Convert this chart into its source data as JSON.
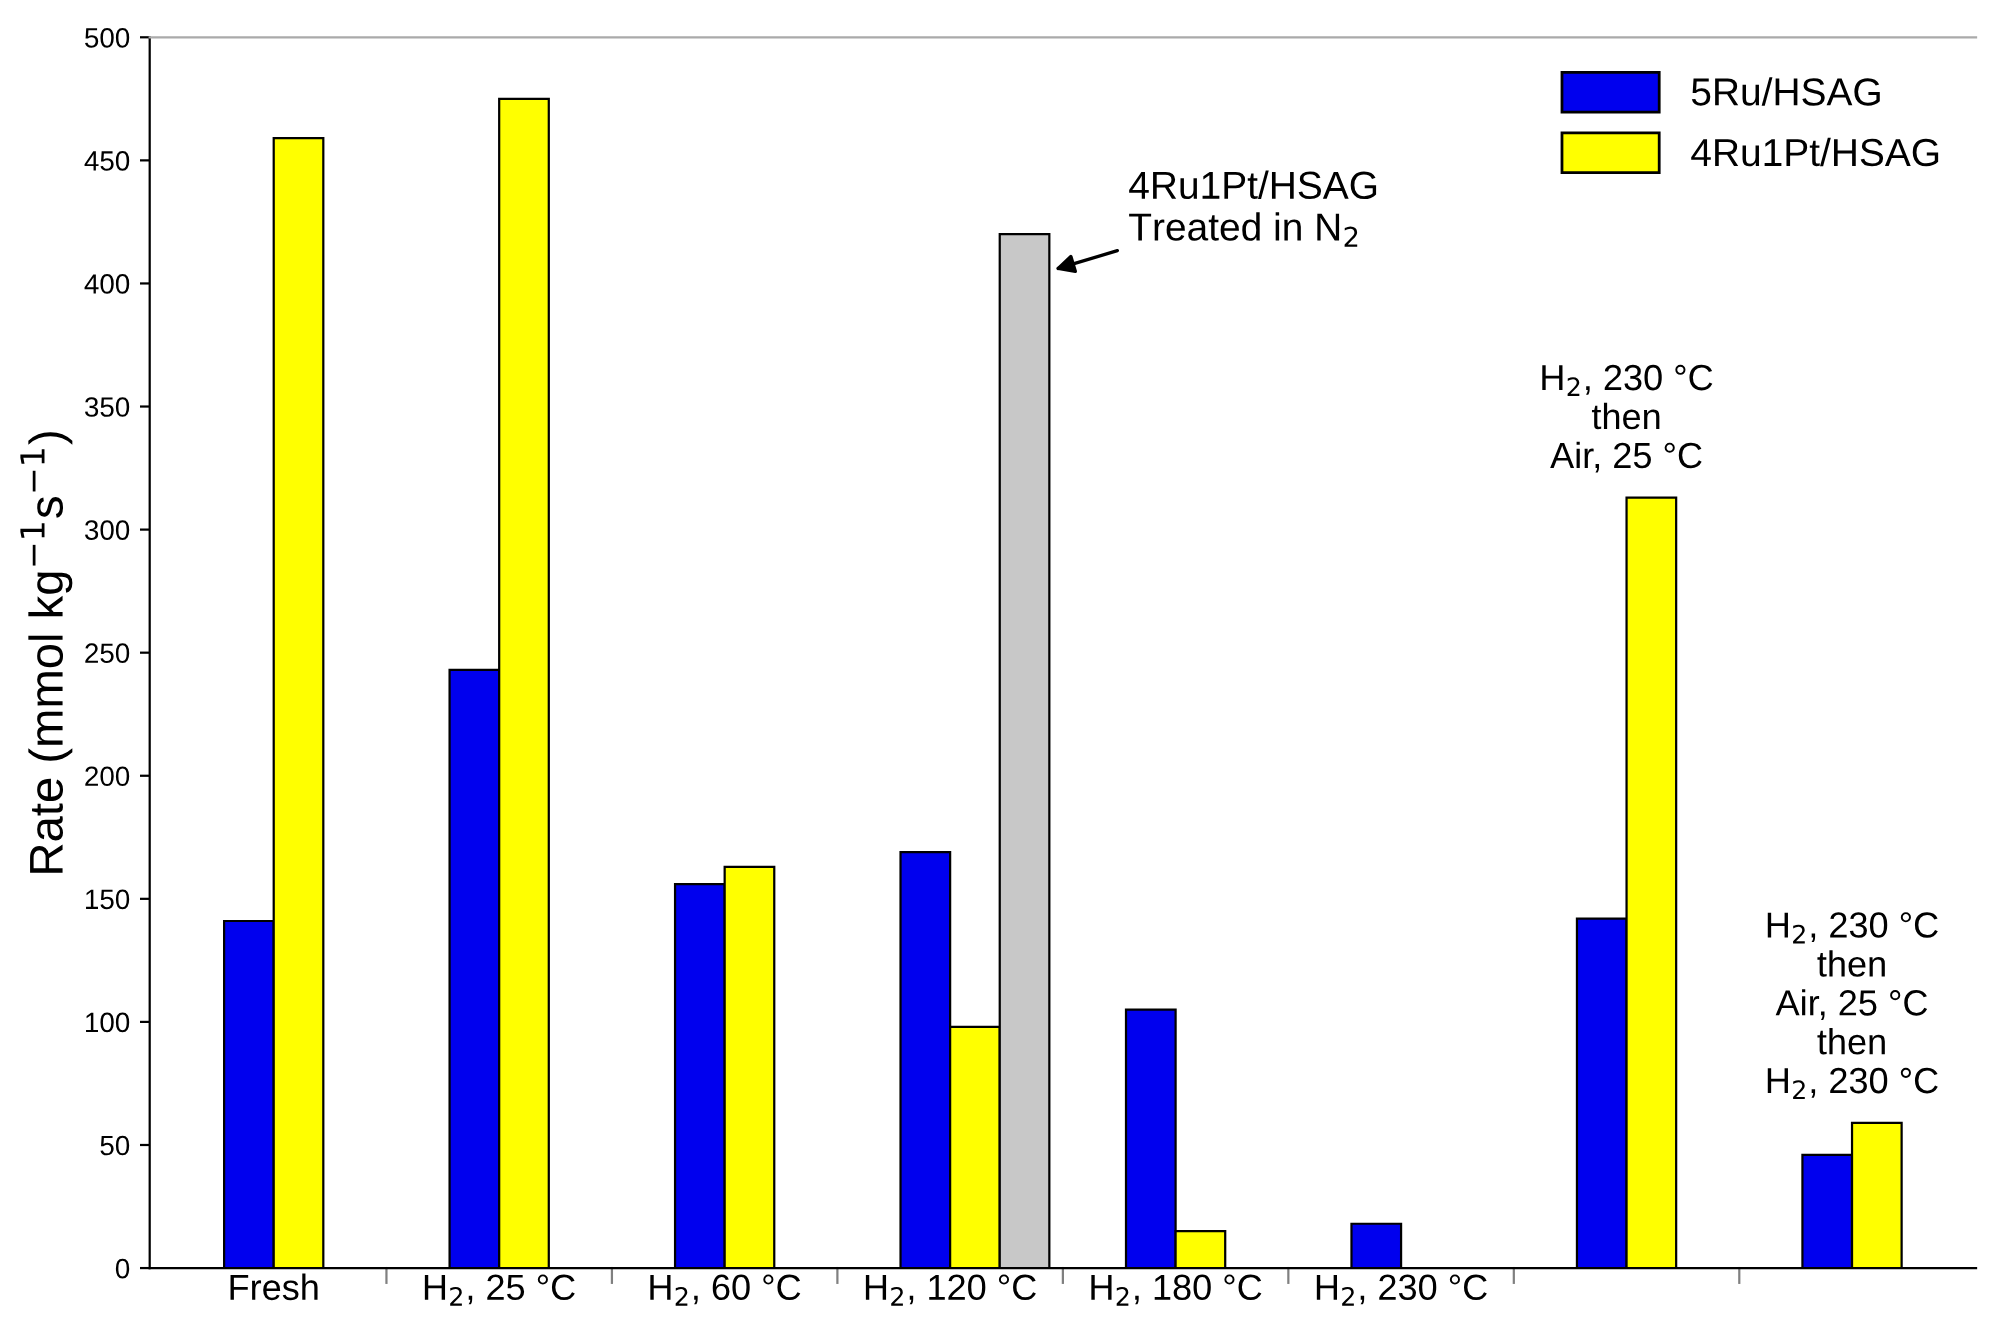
{
  "chart_data": {
    "type": "bar",
    "ylabel": "Rate (mmol kg$^{−1}$s$^{−1}$)",
    "categories": [
      "Fresh",
      "H$_{2}$, 25 °C",
      "H$_{2}$, 60 °C",
      "H$_{2}$, 120 °C",
      "H$_{2}$, 180 °C",
      "H$_{2}$, 230 °C",
      null,
      null
    ],
    "series": [
      {
        "name": "5Ru/HSAG",
        "color": "#0000ee",
        "values": [
          141,
          243,
          156,
          169,
          105,
          18,
          142,
          46
        ]
      },
      {
        "name": "4Ru1Pt/HSAG",
        "color": "#ffff00",
        "values": [
          459,
          475,
          163,
          98,
          15,
          null,
          313,
          59
        ]
      },
      {
        "color": "#c8c8c8",
        "values": [
          null,
          null,
          null,
          420,
          null,
          null,
          null,
          null
        ]
      }
    ],
    "annotations": [
      "4Ru1Pt/HSAG\nTreated in N$_{2}$",
      "H$_{2}$, 230 °C\nthen\nAir, 25 °C",
      "H$_{2}$, 230 °C\nthen\nAir, 25 °C\nthen\nH$_{2}$, 230 °C"
    ],
    "ylim": [
      0,
      500
    ],
    "yticks": [
      0,
      50,
      100,
      150,
      200,
      250,
      300,
      350,
      400,
      450,
      500
    ],
    "grid": false,
    "legend": "top right"
  }
}
